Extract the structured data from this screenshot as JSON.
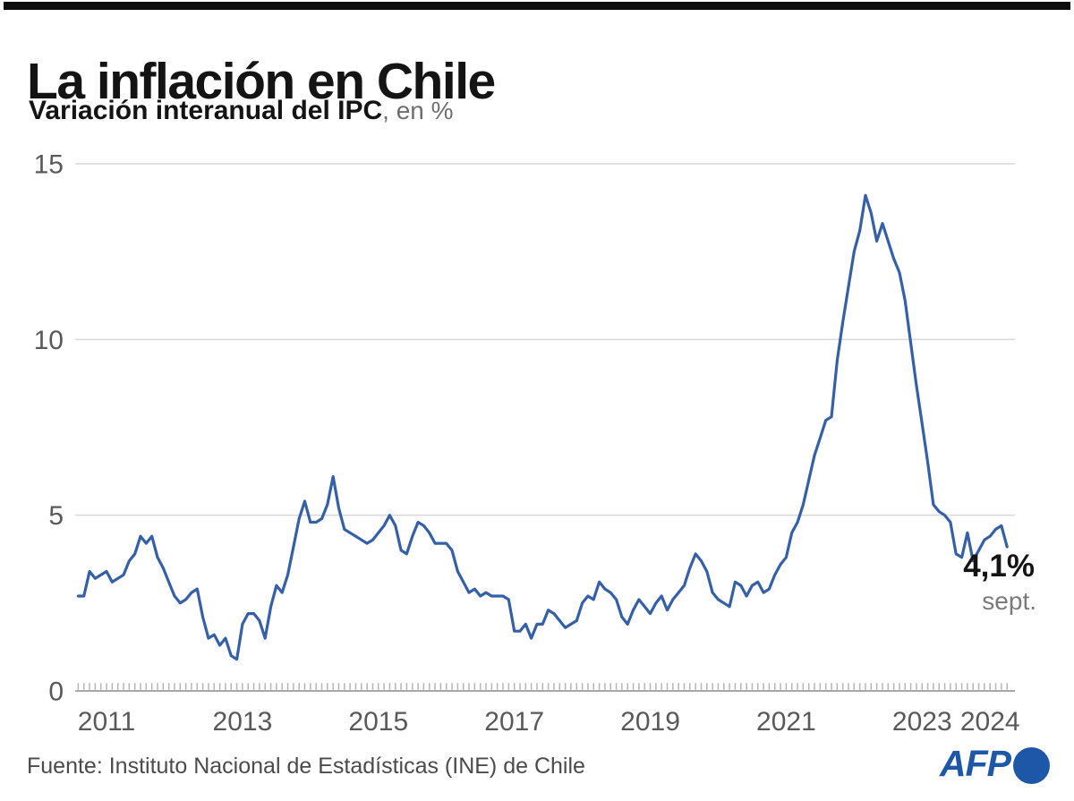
{
  "header": {
    "title": "La inflación en Chile",
    "subtitle_bold": "Variación interanual del IPC",
    "subtitle_light": ", en %"
  },
  "footer": {
    "source": "Fuente: Instituto Nacional de Estadísticas (INE) de Chile",
    "logo_text": "AFP"
  },
  "chart_data": {
    "type": "line",
    "title": "La inflación en Chile",
    "subtitle": "Variación interanual del IPC, en %",
    "unit": "%",
    "x_start": "2011-01",
    "x_end": "2024-09",
    "x_frequency": "monthly",
    "ylim": [
      0,
      15
    ],
    "yticks": [
      0,
      5,
      10,
      15
    ],
    "xtick_years": [
      2011,
      2013,
      2015,
      2017,
      2019,
      2021,
      2023,
      2024
    ],
    "grid": "horizontal",
    "line_color": "#3560a8",
    "series": [
      {
        "name": "Variación interanual del IPC (%)",
        "values": [
          2.7,
          2.7,
          3.4,
          3.2,
          3.3,
          3.4,
          3.1,
          3.2,
          3.3,
          3.7,
          3.9,
          4.4,
          4.2,
          4.4,
          3.8,
          3.5,
          3.1,
          2.7,
          2.5,
          2.6,
          2.8,
          2.9,
          2.1,
          1.5,
          1.6,
          1.3,
          1.5,
          1.0,
          0.9,
          1.9,
          2.2,
          2.2,
          2.0,
          1.5,
          2.4,
          3.0,
          2.8,
          3.3,
          4.1,
          4.9,
          5.4,
          4.8,
          4.8,
          4.9,
          5.3,
          6.1,
          5.2,
          4.6,
          4.5,
          4.4,
          4.3,
          4.2,
          4.3,
          4.5,
          4.7,
          5.0,
          4.7,
          4.0,
          3.9,
          4.4,
          4.8,
          4.7,
          4.5,
          4.2,
          4.2,
          4.2,
          4.0,
          3.4,
          3.1,
          2.8,
          2.9,
          2.7,
          2.8,
          2.7,
          2.7,
          2.7,
          2.6,
          1.7,
          1.7,
          1.9,
          1.5,
          1.9,
          1.9,
          2.3,
          2.2,
          2.0,
          1.8,
          1.9,
          2.0,
          2.5,
          2.7,
          2.6,
          3.1,
          2.9,
          2.8,
          2.6,
          2.1,
          1.9,
          2.3,
          2.6,
          2.4,
          2.2,
          2.5,
          2.7,
          2.3,
          2.6,
          2.8,
          3.0,
          3.5,
          3.9,
          3.7,
          3.4,
          2.8,
          2.6,
          2.5,
          2.4,
          3.1,
          3.0,
          2.7,
          3.0,
          3.1,
          2.8,
          2.9,
          3.3,
          3.6,
          3.8,
          4.5,
          4.8,
          5.3,
          6.0,
          6.7,
          7.2,
          7.7,
          7.8,
          9.4,
          10.5,
          11.5,
          12.5,
          13.1,
          14.1,
          13.6,
          12.8,
          13.3,
          12.8,
          12.3,
          11.9,
          11.1,
          9.9,
          8.7,
          7.6,
          6.5,
          5.3,
          5.1,
          5.0,
          4.8,
          3.9,
          3.8,
          4.5,
          3.7,
          4.0,
          4.3,
          4.4,
          4.6,
          4.7,
          4.1
        ]
      }
    ],
    "annotation": {
      "value_label": "4,1%",
      "sub_label": "sept.",
      "last_value": 4.1
    }
  }
}
